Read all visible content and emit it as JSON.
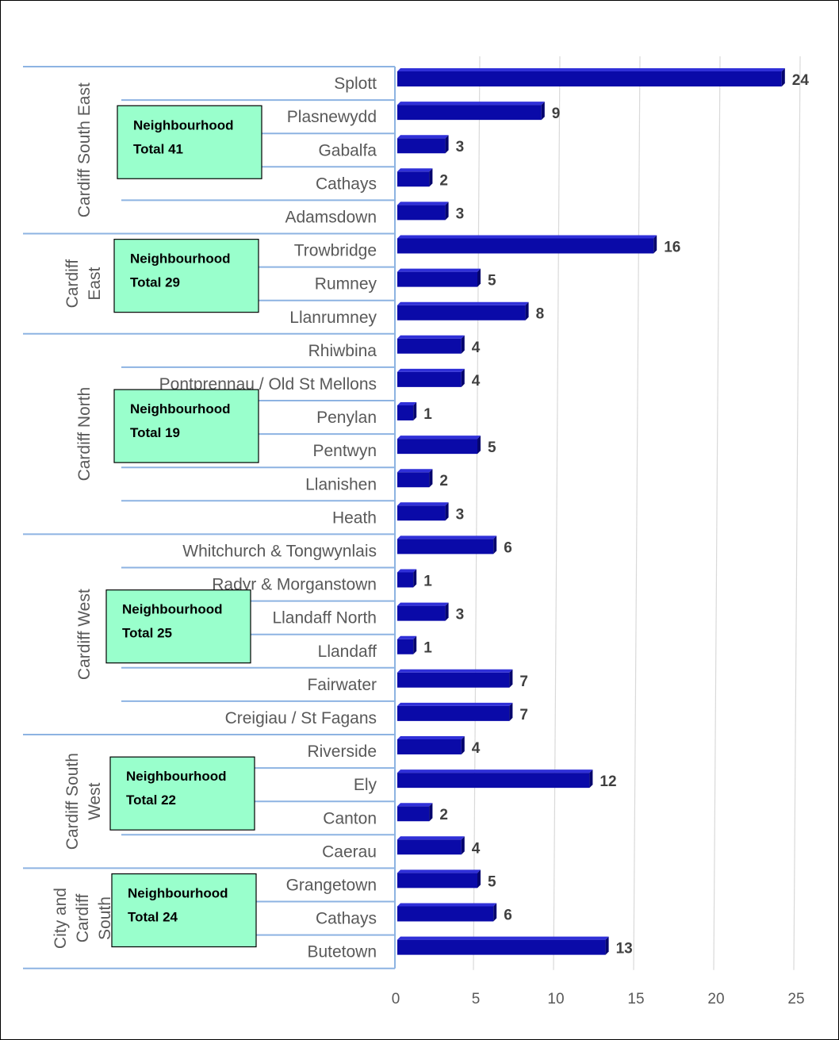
{
  "chart_data": {
    "type": "bar",
    "orientation": "horizontal",
    "xlim": [
      0,
      25
    ],
    "ticks": [
      0,
      5,
      10,
      15,
      20,
      25
    ],
    "grid": true,
    "colors": {
      "bar": "#0a0aa8",
      "bar_top": "#3030d8",
      "bar_side": "#05056e",
      "axis": "#8db3e2",
      "grid": "#d9d9d9",
      "total_box": "#99ffcc"
    },
    "groups": [
      {
        "name": "Cardiff South East",
        "name_lines": [
          "Cardiff South East"
        ],
        "total_lines": [
          "Neighbourhood",
          "Total 41"
        ],
        "categories": [
          "Splott",
          "Plasnewydd",
          "Gabalfa",
          "Cathays",
          "Adamsdown"
        ],
        "values": [
          24,
          9,
          3,
          2,
          3
        ]
      },
      {
        "name": "Cardiff East",
        "name_lines": [
          "Cardiff",
          "East"
        ],
        "total_lines": [
          "Neighbourhood",
          "Total 29"
        ],
        "categories": [
          "Trowbridge",
          "Rumney",
          "Llanrumney"
        ],
        "values": [
          16,
          5,
          8
        ]
      },
      {
        "name": "Cardiff North",
        "name_lines": [
          "Cardiff North"
        ],
        "total_lines": [
          "Neighbourhood",
          "Total 19"
        ],
        "categories": [
          "Rhiwbina",
          "Pontprennau / Old St Mellons",
          "Penylan",
          "Pentwyn",
          "Llanishen",
          "Heath"
        ],
        "values": [
          4,
          4,
          1,
          5,
          2,
          3
        ]
      },
      {
        "name": "Cardiff West",
        "name_lines": [
          "Cardiff West"
        ],
        "total_lines": [
          "Neighbourhood",
          "Total 25"
        ],
        "categories": [
          "Whitchurch & Tongwynlais",
          "Radyr & Morganstown",
          "Llandaff North",
          "Llandaff",
          "Fairwater",
          "Creigiau / St Fagans"
        ],
        "values": [
          6,
          1,
          3,
          1,
          7,
          7
        ]
      },
      {
        "name": "Cardiff South West",
        "name_lines": [
          "Cardiff South",
          "West"
        ],
        "total_lines": [
          "Neighbourhood",
          "Total 22"
        ],
        "categories": [
          "Riverside",
          "Ely",
          "Canton",
          "Caerau"
        ],
        "values": [
          4,
          12,
          2,
          4
        ]
      },
      {
        "name": "City and Cardiff South",
        "name_lines": [
          "City and",
          "Cardiff",
          "South"
        ],
        "total_lines": [
          "Neighbourhood",
          "Total 24"
        ],
        "categories": [
          "Grangetown",
          "Cathays",
          "Butetown"
        ],
        "values": [
          5,
          6,
          13
        ]
      }
    ]
  }
}
